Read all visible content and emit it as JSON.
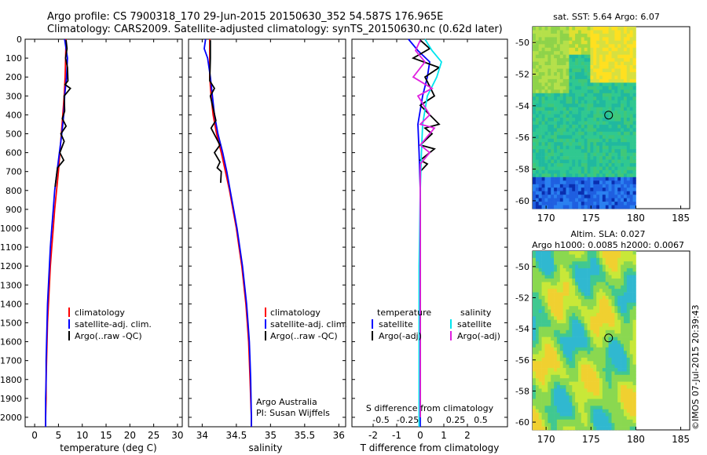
{
  "header": {
    "line1": "Argo profile: CS 7900318_170 29-Jun-2015 20150630_352 54.587S 176.965E",
    "line2": "Climatology: CARS2009. Satellite-adjusted climatology: synTS_20150630.nc (0.62d later)"
  },
  "colors": {
    "climatology": "#ff0000",
    "satellite": "#0000ff",
    "argo": "#000000",
    "salinity_sat": "#00e5ee",
    "salinity_argo": "#e020e0"
  },
  "chart_data": [
    {
      "type": "line",
      "id": "temperature",
      "xlabel": "temperature (deg C)",
      "xlim": [
        -2,
        31
      ],
      "ylim": [
        2050,
        0
      ],
      "xticks": [
        0,
        5,
        10,
        15,
        20,
        25,
        30
      ],
      "yticks": [
        0,
        100,
        200,
        300,
        400,
        500,
        600,
        700,
        800,
        900,
        1000,
        1100,
        1200,
        1300,
        1400,
        1500,
        1600,
        1700,
        1800,
        1900,
        2000
      ],
      "legend": [
        "climatology",
        "satellite-adj. clim.",
        "Argo(..raw -QC)"
      ],
      "series": [
        {
          "name": "climatology",
          "color": "#ff0000",
          "x": [
            6.6,
            6.5,
            6.4,
            6.2,
            5.9,
            5.6,
            5.3,
            5.0,
            4.6,
            4.2,
            3.9,
            3.6,
            3.3,
            3.1,
            2.9,
            2.7,
            2.6,
            2.5,
            2.4,
            2.4,
            2.3,
            2.3
          ],
          "y": [
            0,
            100,
            200,
            300,
            400,
            500,
            600,
            700,
            800,
            900,
            1000,
            1100,
            1200,
            1300,
            1400,
            1500,
            1600,
            1700,
            1800,
            1900,
            2000,
            2050
          ]
        },
        {
          "name": "satellite",
          "color": "#0000ff",
          "x": [
            6.3,
            6.6,
            6.9,
            6.7,
            6.3,
            6.1,
            5.7,
            5.2,
            4.7,
            4.2,
            3.9,
            3.6,
            3.3,
            3.1,
            2.9,
            2.7,
            2.6,
            2.5,
            2.4,
            2.4,
            2.3,
            2.3
          ],
          "y": [
            0,
            50,
            100,
            200,
            300,
            400,
            500,
            600,
            700,
            800,
            900,
            1000,
            1100,
            1200,
            1300,
            1400,
            1500,
            1600,
            1700,
            1800,
            1900,
            2050
          ]
        },
        {
          "name": "argo",
          "color": "#000000",
          "x": [
            6.6,
            6.8,
            6.5,
            6.9,
            7.0,
            6.4,
            7.5,
            6.2,
            6.3,
            5.8,
            6.6,
            5.5,
            6.2,
            5.3,
            6.1,
            4.8,
            4.5,
            4.3
          ],
          "y": [
            5,
            50,
            100,
            150,
            220,
            240,
            260,
            300,
            380,
            420,
            460,
            500,
            540,
            600,
            640,
            680,
            740,
            780
          ]
        }
      ]
    },
    {
      "type": "line",
      "id": "salinity",
      "xlabel": "salinity",
      "xlim": [
        33.8,
        36.1
      ],
      "ylim": [
        2050,
        0
      ],
      "xticks": [
        34,
        34.5,
        35,
        35.5,
        36
      ],
      "legend": [
        "climatology",
        "satellite-adj. clim.",
        "Argo(..raw -QC)"
      ],
      "annotation": [
        "Argo Australia",
        "PI: Susan Wijffels"
      ],
      "series": [
        {
          "name": "climatology",
          "color": "#ff0000",
          "x": [
            34.11,
            34.11,
            34.11,
            34.13,
            34.16,
            34.21,
            34.28,
            34.34,
            34.4,
            34.45,
            34.5,
            34.54,
            34.58,
            34.61,
            34.64,
            34.66,
            34.68,
            34.69,
            34.7,
            34.71,
            34.72,
            34.72
          ],
          "y": [
            0,
            100,
            200,
            300,
            400,
            500,
            600,
            700,
            800,
            900,
            1000,
            1100,
            1200,
            1300,
            1400,
            1500,
            1600,
            1700,
            1800,
            1900,
            2000,
            2050
          ]
        },
        {
          "name": "satellite",
          "color": "#0000ff",
          "x": [
            34.05,
            34.03,
            34.08,
            34.12,
            34.15,
            34.18,
            34.23,
            34.3,
            34.36,
            34.41,
            34.46,
            34.51,
            34.55,
            34.59,
            34.62,
            34.65,
            34.67,
            34.69,
            34.7,
            34.71,
            34.72,
            34.72
          ],
          "y": [
            0,
            50,
            100,
            200,
            300,
            400,
            500,
            600,
            700,
            800,
            900,
            1000,
            1100,
            1200,
            1300,
            1400,
            1500,
            1600,
            1700,
            1800,
            2000,
            2050
          ]
        },
        {
          "name": "argo",
          "color": "#000000",
          "x": [
            34.12,
            34.12,
            34.11,
            34.18,
            34.12,
            34.2,
            34.13,
            34.26,
            34.18,
            34.26,
            34.22,
            34.28,
            34.27
          ],
          "y": [
            5,
            100,
            220,
            260,
            300,
            430,
            470,
            560,
            600,
            650,
            680,
            700,
            760
          ]
        }
      ]
    },
    {
      "type": "line",
      "id": "difference",
      "xlabel": "T difference from climatology",
      "xlabel_top": "S difference from climatology",
      "xlim": [
        -2.9,
        3.7
      ],
      "ylim": [
        2050,
        0
      ],
      "xticks": [
        -2,
        -1,
        0,
        1,
        2
      ],
      "xticks_top": [
        "-0.5",
        "-0.25",
        "0",
        "0.25",
        "0.5"
      ],
      "legend_left": [
        "temperature",
        "satellite",
        "Argo(-adj)"
      ],
      "legend_right": [
        "salinity",
        "satellite",
        "Argo(-adj)"
      ],
      "series": [
        {
          "name": "T satellite",
          "color": "#0000ff",
          "x": [
            -0.5,
            -0.1,
            0.4,
            0.3,
            0.1,
            -0.1,
            -0.05,
            0.0,
            0.0,
            0.0,
            0.0
          ],
          "y": [
            0,
            60,
            120,
            200,
            300,
            450,
            600,
            800,
            1200,
            1600,
            2050
          ]
        },
        {
          "name": "T Argo(-adj)",
          "color": "#000000",
          "x": [
            0.0,
            0.4,
            -0.3,
            0.8,
            0.2,
            0.4,
            0.6,
            0.0,
            0.8,
            0.2,
            0.5,
            0.0,
            0.6,
            0.0,
            0.3,
            0.0,
            0.0,
            0.0
          ],
          "y": [
            5,
            50,
            100,
            150,
            200,
            250,
            300,
            350,
            450,
            470,
            500,
            560,
            580,
            640,
            660,
            700,
            1000,
            2000
          ]
        },
        {
          "name": "S satellite",
          "color": "#00e5ee",
          "x": [
            0.2,
            0.5,
            0.9,
            0.7,
            0.3,
            0.1,
            0.05,
            0.0,
            -0.05,
            -0.05,
            -0.05
          ],
          "y": [
            0,
            60,
            120,
            200,
            300,
            450,
            600,
            800,
            1200,
            1600,
            2050
          ]
        },
        {
          "name": "S Argo(-adj)",
          "color": "#e020e0",
          "x": [
            0.0,
            -0.2,
            0.2,
            -0.3,
            0.5,
            -0.1,
            0.4,
            0.0,
            0.6,
            0.0,
            0.4,
            0.0,
            0.0,
            0.0
          ],
          "y": [
            5,
            60,
            120,
            200,
            260,
            300,
            400,
            450,
            470,
            560,
            600,
            660,
            800,
            2000
          ]
        }
      ]
    },
    {
      "type": "heatmap",
      "id": "sst-map",
      "title": "sat. SST: 5.64  Argo: 6.07",
      "xlim": [
        168.5,
        186
      ],
      "ylim": [
        -60.5,
        -49
      ],
      "xticks": [
        170,
        175,
        180,
        185
      ],
      "yticks": [
        -50,
        -52,
        -54,
        -56,
        -58,
        -60
      ],
      "marker": {
        "lon": 176.965,
        "lat": -54.587
      }
    },
    {
      "type": "heatmap",
      "id": "sla-map",
      "title_lines": [
        "Altim. SLA: 0.027",
        "Argo h1000: 0.0085 h2000: 0.0067"
      ],
      "xlim": [
        168.5,
        186
      ],
      "ylim": [
        -60.5,
        -49
      ],
      "xticks": [
        170,
        175,
        180,
        185
      ],
      "yticks": [
        -50,
        -52,
        -54,
        -56,
        -58,
        -60
      ],
      "marker": {
        "lon": 176.965,
        "lat": -54.587
      }
    }
  ],
  "legends": {
    "temperature": [
      "climatology",
      "satellite-adj. clim.",
      "Argo(..raw -QC)"
    ],
    "salinity": [
      "climatology",
      "satellite-adj. clim.",
      "Argo(..raw -QC)"
    ],
    "diff_left": [
      "temperature",
      "satellite",
      "Argo(-adj)"
    ],
    "diff_right": [
      "salinity",
      "satellite",
      "Argo(-adj)"
    ]
  },
  "annotation": {
    "line1": "Argo Australia",
    "line2": "PI: Susan Wijffels"
  },
  "credit": "©IMOS 07-Jul-2015 20:39:43"
}
